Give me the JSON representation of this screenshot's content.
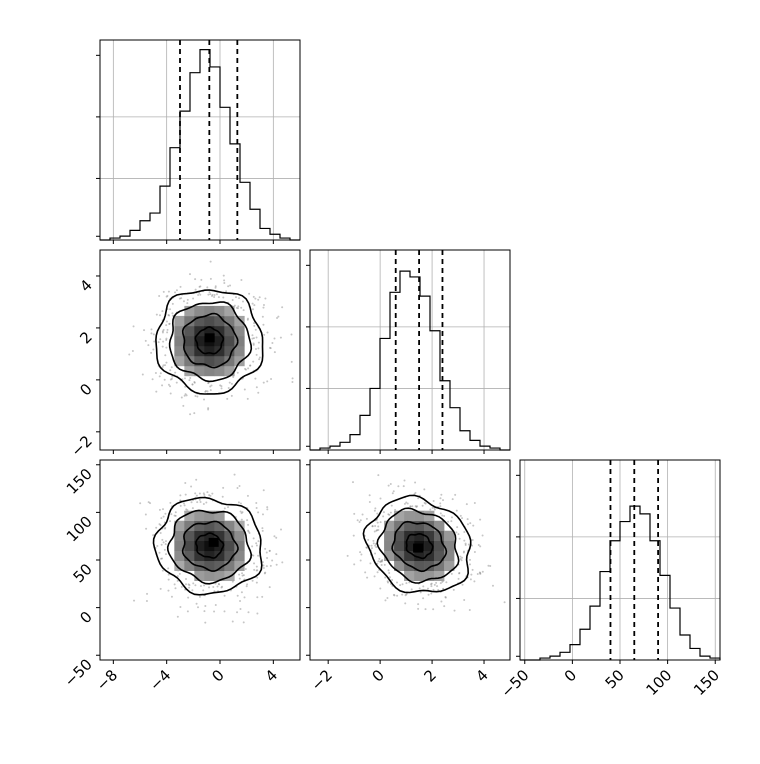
{
  "chart_data": {
    "type": "corner",
    "variables": [
      {
        "range": [
          -9,
          6
        ],
        "ticks": [
          -8,
          -4,
          0,
          4
        ],
        "tick_labels": [
          "−8",
          "−4",
          "0",
          "4"
        ],
        "quantiles": [
          -3.0,
          -0.8,
          1.3
        ],
        "hist_y_ticks": [
          0.0,
          0.32,
          0.64,
          0.96
        ],
        "hist": {
          "bin_edges": [
            -9,
            -8.25,
            -7.5,
            -6.75,
            -6,
            -5.25,
            -4.5,
            -3.75,
            -3,
            -2.25,
            -1.5,
            -0.75,
            0,
            0.75,
            1.5,
            2.25,
            3,
            3.75,
            4.5,
            5.25,
            6
          ],
          "counts": [
            0.0,
            0.01,
            0.02,
            0.05,
            0.1,
            0.14,
            0.28,
            0.48,
            0.67,
            0.87,
            0.99,
            0.9,
            0.69,
            0.5,
            0.3,
            0.16,
            0.06,
            0.03,
            0.01,
            0.0
          ]
        }
      },
      {
        "range": [
          -2.7,
          5.0
        ],
        "ticks": [
          -2,
          0,
          2,
          4
        ],
        "tick_labels": [
          "−2",
          "0",
          "2",
          "4"
        ],
        "quantiles": [
          0.6,
          1.5,
          2.4
        ],
        "hist_y_ticks": [
          0.0,
          0.3,
          0.6
        ],
        "hist": {
          "bin_edges": [
            -2.7,
            -2.315,
            -1.93,
            -1.545,
            -1.16,
            -0.775,
            -0.39,
            -0.005,
            0.38,
            0.765,
            1.15,
            1.535,
            1.92,
            2.305,
            2.69,
            3.075,
            3.46,
            3.845,
            4.23,
            4.615,
            5.0
          ],
          "counts": [
            0.0,
            0.01,
            0.02,
            0.04,
            0.08,
            0.18,
            0.32,
            0.58,
            0.82,
            0.93,
            0.9,
            0.8,
            0.62,
            0.36,
            0.22,
            0.1,
            0.05,
            0.02,
            0.01,
            0.0
          ]
        }
      },
      {
        "range": [
          -55,
          155
        ],
        "ticks": [
          -50,
          0,
          50,
          100,
          150
        ],
        "tick_labels": [
          "−50",
          "0",
          "50",
          "100",
          "150"
        ],
        "quantiles": [
          40,
          65,
          90
        ],
        "hist_y_ticks": [
          0.0,
          0.005,
          0.01
        ],
        "hist": {
          "bin_edges": [
            -55,
            -44.5,
            -34,
            -23.5,
            -13,
            -2.5,
            8,
            18.5,
            29,
            39.5,
            50,
            60.5,
            71,
            81.5,
            92,
            102.5,
            113,
            123.5,
            134,
            144.5,
            155
          ],
          "counts": [
            0.0,
            0.0,
            0.01,
            0.02,
            0.04,
            0.08,
            0.16,
            0.28,
            0.46,
            0.62,
            0.72,
            0.8,
            0.76,
            0.62,
            0.44,
            0.27,
            0.13,
            0.06,
            0.02,
            0.01
          ]
        }
      }
    ],
    "pairs": [
      {
        "row": 1,
        "col": 0,
        "mean": [
          -0.8,
          1.5
        ],
        "std": [
          2.0,
          1.0
        ],
        "corr": -0.02,
        "peak": [
          -0.7,
          1.6
        ]
      },
      {
        "row": 2,
        "col": 0,
        "mean": [
          -0.8,
          65
        ],
        "std": [
          2.0,
          25
        ],
        "corr": -0.05,
        "peak": [
          -0.4,
          68
        ]
      },
      {
        "row": 2,
        "col": 1,
        "mean": [
          1.5,
          65
        ],
        "std": [
          1.0,
          25
        ],
        "corr": -0.15,
        "peak": [
          1.5,
          62
        ]
      }
    ],
    "contour_levels_sigma": [
      0.5,
      1.0,
      1.5,
      2.0
    ],
    "grid": true,
    "colors": {
      "line": "#000000",
      "grid": "#b0b0b0",
      "scatter": "#808080"
    }
  }
}
